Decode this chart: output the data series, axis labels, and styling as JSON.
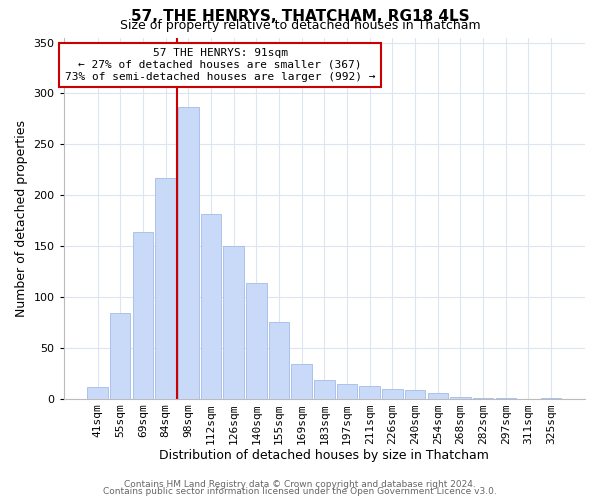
{
  "title": "57, THE HENRYS, THATCHAM, RG18 4LS",
  "subtitle": "Size of property relative to detached houses in Thatcham",
  "xlabel": "Distribution of detached houses by size in Thatcham",
  "ylabel": "Number of detached properties",
  "bar_labels": [
    "41sqm",
    "55sqm",
    "69sqm",
    "84sqm",
    "98sqm",
    "112sqm",
    "126sqm",
    "140sqm",
    "155sqm",
    "169sqm",
    "183sqm",
    "197sqm",
    "211sqm",
    "226sqm",
    "240sqm",
    "254sqm",
    "268sqm",
    "282sqm",
    "297sqm",
    "311sqm",
    "325sqm"
  ],
  "bar_values": [
    11,
    84,
    164,
    217,
    287,
    181,
    150,
    114,
    75,
    34,
    18,
    14,
    12,
    9,
    8,
    5,
    2,
    1,
    1,
    0,
    1
  ],
  "bar_color": "#c9daf8",
  "bar_edgecolor": "#a4bce8",
  "vline_color": "#cc0000",
  "vline_index": 4,
  "annotation_title": "57 THE HENRYS: 91sqm",
  "annotation_line1": "← 27% of detached houses are smaller (367)",
  "annotation_line2": "73% of semi-detached houses are larger (992) →",
  "annotation_box_edgecolor": "#cc0000",
  "ylim": [
    0,
    355
  ],
  "yticks": [
    0,
    50,
    100,
    150,
    200,
    250,
    300,
    350
  ],
  "footer1": "Contains HM Land Registry data © Crown copyright and database right 2024.",
  "footer2": "Contains public sector information licensed under the Open Government Licence v3.0.",
  "background_color": "#ffffff",
  "grid_color": "#dce6f1",
  "title_fontsize": 11,
  "subtitle_fontsize": 9,
  "xlabel_fontsize": 9,
  "ylabel_fontsize": 9,
  "tick_fontsize": 8,
  "annotation_fontsize": 8,
  "footer_fontsize": 6.5
}
